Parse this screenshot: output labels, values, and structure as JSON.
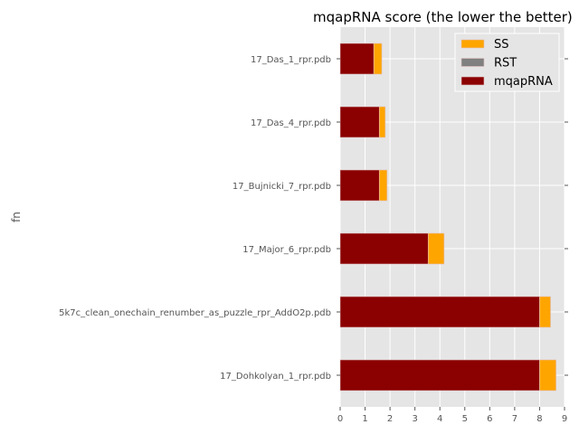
{
  "chart_data": {
    "type": "bar",
    "orientation": "horizontal",
    "stacked": true,
    "title": "mqapRNA score (the lower the better)",
    "xlabel": "",
    "ylabel": "fn",
    "xlim": [
      0,
      9
    ],
    "xticks": [
      0,
      1,
      2,
      3,
      4,
      5,
      6,
      7,
      8,
      9
    ],
    "grid": true,
    "legend_position": "top-right",
    "categories": [
      "17_Das_1_rpr.pdb",
      "17_Das_4_rpr.pdb",
      "17_Bujnicki_7_rpr.pdb",
      "17_Major_6_rpr.pdb",
      "5k7c_clean_onechain_renumber_as_puzzle_rpr_AddO2p.pdb",
      "17_Dohkolyan_1_rpr.pdb"
    ],
    "series": [
      {
        "name": "mqapRNA",
        "color": "#8b0000",
        "values": [
          1.35,
          1.57,
          1.57,
          3.53,
          8.0,
          8.0
        ]
      },
      {
        "name": "RST",
        "color": "#808080",
        "values": [
          0,
          0,
          0,
          0,
          0,
          0
        ]
      },
      {
        "name": "SS",
        "color": "#ffa500",
        "values": [
          0.32,
          0.24,
          0.31,
          0.64,
          0.44,
          0.66
        ]
      }
    ],
    "legend_order": [
      "SS",
      "RST",
      "mqapRNA"
    ]
  }
}
